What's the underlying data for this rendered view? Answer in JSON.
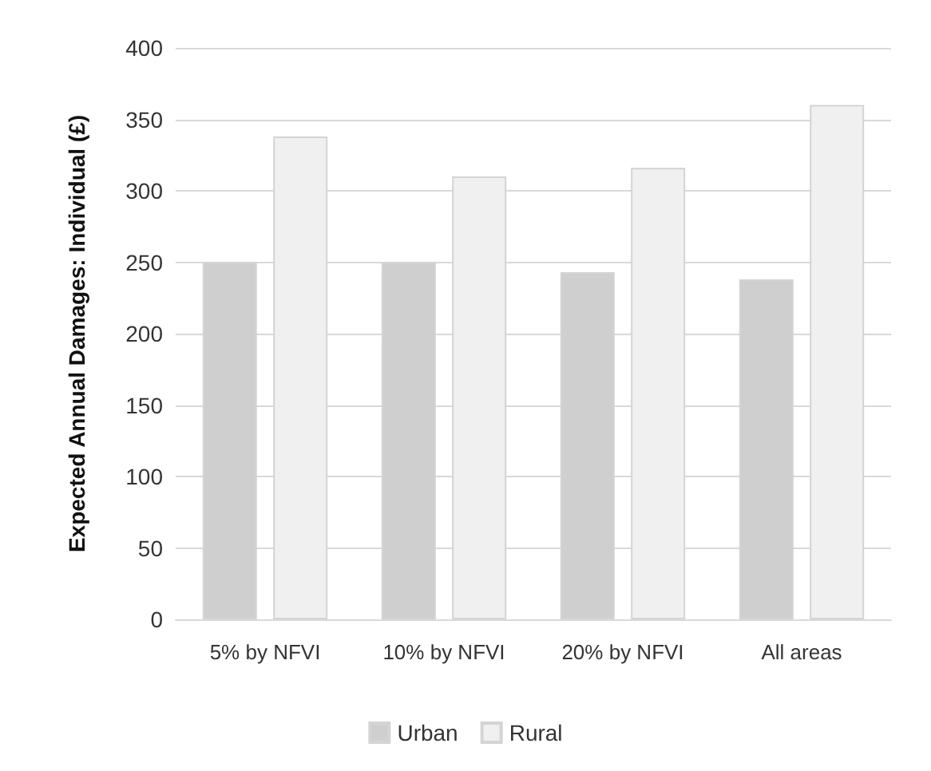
{
  "chart_data": {
    "type": "bar",
    "ylabel": "Expected Annual Damages: Individual (£)",
    "categories": [
      "5% by NFVI",
      "10% by NFVI",
      "20% by NFVI",
      "All areas"
    ],
    "series": [
      {
        "name": "Urban",
        "color": "#d0cfd0",
        "values": [
          250,
          250,
          243,
          238
        ]
      },
      {
        "name": "Rural",
        "color": "#f0f0f0",
        "values": [
          338,
          310,
          316,
          360
        ]
      }
    ],
    "ylim": [
      0,
      400
    ],
    "yticks": [
      0,
      50,
      100,
      150,
      200,
      250,
      300,
      350,
      400
    ],
    "grid": true,
    "legend": "bottom"
  }
}
